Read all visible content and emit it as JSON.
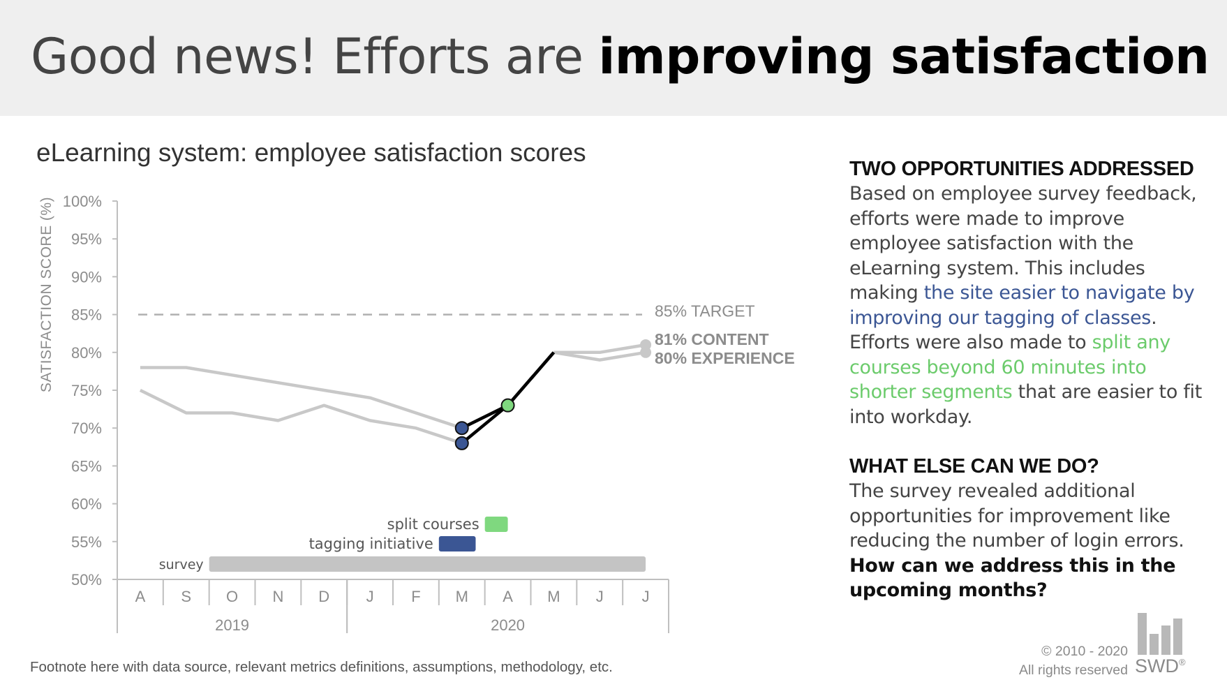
{
  "slide": {
    "headline_light": "Good news! Efforts are",
    "headline_bold": "improving satisfaction",
    "chart_title": "eLearning system: employee satisfaction scores",
    "footnote": "Footnote here with data source, relevant metrics definitions, assumptions, methodology, etc."
  },
  "side": {
    "heading1": "TWO OPPORTUNITIES ADDRESSED",
    "p1_a": "Based on employee survey feedback, efforts were made to improve employee satisfaction with the eLearning system. This includes making",
    "p1_blue": "the site easier to navigate by improving our tagging of classes",
    "p1_b": ". Efforts were also made to",
    "p1_green": "split any courses beyond 60 minutes into shorter segments",
    "p1_c": "that are easier to fit into workday.",
    "heading2": "WHAT ELSE CAN WE DO?",
    "p2": "The survey revealed additional opportunities for improvement like reducing the number of login errors.",
    "p2_bold": "How can we address this in the upcoming months?"
  },
  "brand": {
    "copyright_line1": "© 2010 - 2020",
    "copyright_line2": "All rights reserved",
    "logo_text": "SWD",
    "logo_mark": "®"
  },
  "colors": {
    "gray_line": "#c8c8c8",
    "highlight_line": "#000000",
    "blue": "#3b5694",
    "green": "#7fd87f",
    "survey_bar": "#c4c4c4",
    "axis": "#bfbfbf"
  },
  "chart_data": {
    "type": "line",
    "title": "eLearning system: employee satisfaction scores",
    "ylabel": "SATISFACTION SCORE (%)",
    "xlabel": "",
    "ylim": [
      50,
      100
    ],
    "yticks": [
      100,
      95,
      90,
      85,
      80,
      75,
      70,
      65,
      60,
      55,
      50
    ],
    "ytick_labels": [
      "100%",
      "95%",
      "90%",
      "85%",
      "80%",
      "75%",
      "70%",
      "65%",
      "60%",
      "55%",
      "50%"
    ],
    "categories": [
      "A",
      "S",
      "O",
      "N",
      "D",
      "J",
      "F",
      "M",
      "A",
      "M",
      "J",
      "J"
    ],
    "year_groups": [
      {
        "label": "2019",
        "start": 0,
        "end": 4
      },
      {
        "label": "2020",
        "start": 5,
        "end": 11
      }
    ],
    "series": [
      {
        "name": "Content",
        "end_label": "81% CONTENT",
        "values": [
          78,
          78,
          77,
          76,
          75,
          74,
          72,
          70,
          73,
          80,
          80,
          81
        ]
      },
      {
        "name": "Experience",
        "end_label": "80% EXPERIENCE",
        "values": [
          75,
          72,
          72,
          71,
          73,
          71,
          70,
          68,
          73,
          80,
          79,
          80
        ]
      }
    ],
    "highlight": {
      "start": 7,
      "end": 9
    },
    "markers": [
      {
        "series": 0,
        "index": 7,
        "color": "blue"
      },
      {
        "series": 1,
        "index": 7,
        "color": "blue"
      },
      {
        "series": 1,
        "index": 8,
        "color": "green"
      }
    ],
    "target": {
      "value": 85,
      "label": "85% TARGET"
    },
    "initiatives": [
      {
        "name": "split courses",
        "start": 8,
        "end": 8.5,
        "color": "green"
      },
      {
        "name": "tagging initiative",
        "start": 7,
        "end": 7.8,
        "color": "blue"
      },
      {
        "name": "survey",
        "start": 2,
        "end": 11.5,
        "color": "gray"
      }
    ],
    "grid": false
  }
}
